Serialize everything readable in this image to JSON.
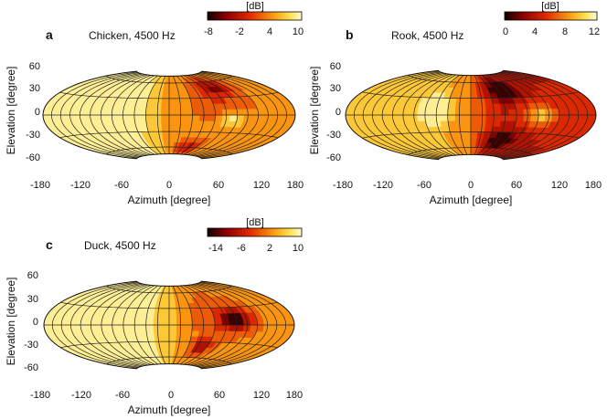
{
  "chart_data": [
    {
      "type": "heatmap",
      "panel_letter": "a",
      "title": "Chicken, 4500 Hz",
      "xlabel": "Azimuth [degree]",
      "ylabel": "Elevation [degree]",
      "xticks": [
        "-180",
        "-120",
        "-60",
        "0",
        "60",
        "120",
        "180"
      ],
      "yticks": [
        "60",
        "30",
        "0",
        "-30",
        "-60"
      ],
      "xlim": [
        -180,
        180
      ],
      "ylim": [
        -90,
        90
      ],
      "colorbar": {
        "label": "[dB]",
        "min": -10,
        "max": 10,
        "ticks": [
          "-8",
          "-2",
          "4",
          "10"
        ]
      },
      "field": {
        "base": 4.5,
        "left": 3.0,
        "right": -1.5,
        "blobs": [
          {
            "az": -60,
            "el": 15,
            "amp": 4.5,
            "saz": 25,
            "sel": 35
          },
          {
            "az": 80,
            "el": 50,
            "amp": -8.5,
            "saz": 28,
            "sel": 15
          },
          {
            "az": 40,
            "el": -60,
            "amp": -6.5,
            "saz": 22,
            "sel": 15
          },
          {
            "az": 85,
            "el": -5,
            "amp": 5.5,
            "saz": 18,
            "sel": 14
          },
          {
            "az": 70,
            "el": 20,
            "amp": -3.0,
            "saz": 35,
            "sel": 25
          }
        ]
      }
    },
    {
      "type": "heatmap",
      "panel_letter": "b",
      "title": "Rook, 4500 Hz",
      "xlabel": "Azimuth [degree]",
      "ylabel": "Elevation [degree]",
      "xticks": [
        "-180",
        "-120",
        "-60",
        "0",
        "60",
        "120",
        "180"
      ],
      "yticks": [
        "60",
        "30",
        "0",
        "-30",
        "-60"
      ],
      "xlim": [
        -180,
        180
      ],
      "ylim": [
        -90,
        90
      ],
      "colorbar": {
        "label": "[dB]",
        "min": 0,
        "max": 12,
        "ticks": [
          "0",
          "4",
          "8",
          "12"
        ]
      },
      "field": {
        "base": 7.5,
        "left": 1.5,
        "right": -3.0,
        "blobs": [
          {
            "az": -50,
            "el": 10,
            "amp": 4.5,
            "saz": 20,
            "sel": 25
          },
          {
            "az": 50,
            "el": 45,
            "amp": -6.5,
            "saz": 25,
            "sel": 18
          },
          {
            "az": 50,
            "el": -45,
            "amp": -5.5,
            "saz": 25,
            "sel": 15
          },
          {
            "az": 95,
            "el": 0,
            "amp": 5.5,
            "saz": 20,
            "sel": 18
          }
        ]
      }
    },
    {
      "type": "heatmap",
      "panel_letter": "c",
      "title": "Duck, 4500 Hz",
      "xlabel": "Azimuth [degree]",
      "ylabel": "Elevation [degree]",
      "xticks": [
        "-180",
        "-120",
        "-60",
        "0",
        "60",
        "120",
        "180"
      ],
      "yticks": [
        "60",
        "30",
        "0",
        "-30",
        "-60"
      ],
      "xlim": [
        -180,
        180
      ],
      "ylim": [
        -90,
        90
      ],
      "colorbar": {
        "label": "[dB]",
        "min": -16,
        "max": 10,
        "ticks": [
          "-14",
          "-6",
          "2",
          "10"
        ]
      },
      "field": {
        "base": 5.0,
        "left": 3.5,
        "right": -4.0,
        "blobs": [
          {
            "az": -90,
            "el": 10,
            "amp": 3.0,
            "saz": 40,
            "sel": 40
          },
          {
            "az": 90,
            "el": 10,
            "amp": -14.0,
            "saz": 22,
            "sel": 18
          },
          {
            "az": 50,
            "el": -40,
            "amp": -11.0,
            "saz": 15,
            "sel": 15
          },
          {
            "az": 65,
            "el": 15,
            "amp": -3.0,
            "saz": 45,
            "sel": 35
          }
        ]
      }
    }
  ]
}
